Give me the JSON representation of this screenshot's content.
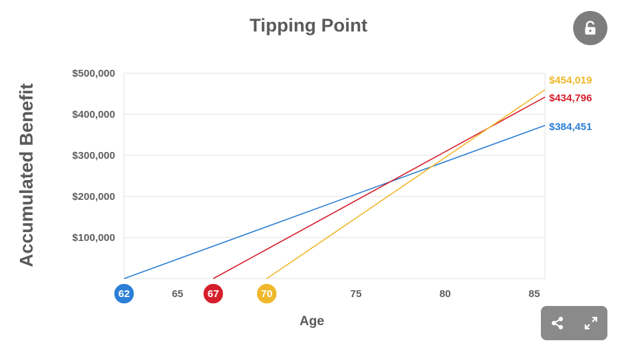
{
  "chart_data": {
    "type": "line",
    "title": "Tipping Point",
    "xlabel": "Age",
    "ylabel": "Accumulated Benefit",
    "xlim": [
      62,
      85.6
    ],
    "ylim": [
      0,
      500000
    ],
    "x_ticks": [
      {
        "value": 62,
        "label": "62",
        "highlight_color": "#2b7fd6"
      },
      {
        "value": 65,
        "label": "65"
      },
      {
        "value": 67,
        "label": "67",
        "highlight_color": "#d61f2c"
      },
      {
        "value": 70,
        "label": "70",
        "highlight_color": "#efb82b"
      },
      {
        "value": 75,
        "label": "75"
      },
      {
        "value": 80,
        "label": "80"
      },
      {
        "value": 85,
        "label": "85"
      }
    ],
    "y_ticks": [
      {
        "value": 100000,
        "label": "$100,000"
      },
      {
        "value": 200000,
        "label": "$200,000"
      },
      {
        "value": 300000,
        "label": "$300,000"
      },
      {
        "value": 400000,
        "label": "$400,000"
      },
      {
        "value": 500000,
        "label": "$500,000"
      }
    ],
    "grid": true,
    "series": [
      {
        "color": "#2b7fd6",
        "start_age": 62,
        "points": [
          [
            62,
            0
          ],
          [
            85.6,
            373000
          ]
        ],
        "end_label": "$384,451"
      },
      {
        "color": "#d61f2c",
        "start_age": 67,
        "points": [
          [
            67,
            0
          ],
          [
            85.6,
            442000
          ]
        ],
        "end_label": "$434,796"
      },
      {
        "color": "#efb82b",
        "start_age": 70,
        "points": [
          [
            70,
            0
          ],
          [
            85.6,
            460000
          ]
        ],
        "end_label": "$454,019"
      }
    ]
  },
  "controls": {
    "lock_icon": "unlock-icon",
    "share_icon": "share-icon",
    "expand_icon": "expand-icon"
  }
}
